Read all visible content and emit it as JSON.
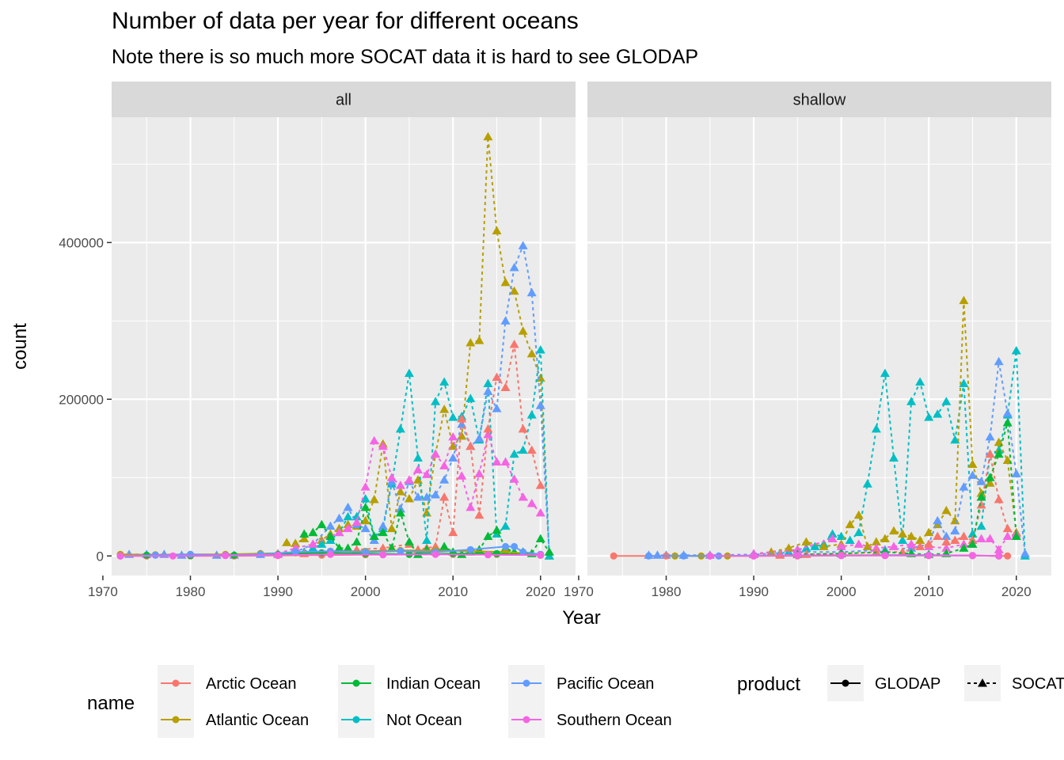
{
  "chart_data": {
    "type": "line",
    "title": "Number of data per year for different oceans",
    "subtitle": "Note there is so much more SOCAT data it is hard to see GLODAP",
    "xlabel": "Year",
    "ylabel": "count",
    "facets": [
      "all",
      "shallow"
    ],
    "xlim": [
      1971,
      2024
    ],
    "ylim": [
      -25000,
      560000
    ],
    "x_ticks": [
      1970,
      1980,
      1990,
      2000,
      2010,
      2020
    ],
    "x_tick_labels": [
      "1970",
      "1980",
      "1990",
      "2000",
      "2010",
      "2020"
    ],
    "y_ticks": [
      0,
      200000,
      400000
    ],
    "y_tick_labels": [
      "0",
      "200000",
      "400000"
    ],
    "grid": true,
    "legend_position": "bottom",
    "colors": {
      "Arctic Ocean": "#F8766D",
      "Atlantic Ocean": "#B79F00",
      "Indian Ocean": "#00BA38",
      "Not Ocean": "#00BFC4",
      "Pacific Ocean": "#619CFF",
      "Southern Ocean": "#F564E3"
    },
    "legend": {
      "name_title": "name",
      "names": [
        "Arctic Ocean",
        "Atlantic Ocean",
        "Indian Ocean",
        "Not Ocean",
        "Pacific Ocean",
        "Southern Ocean"
      ],
      "product_title": "product",
      "products": [
        "GLODAP",
        "SOCAT"
      ]
    },
    "series": [
      {
        "facet": "all",
        "name": "Atlantic Ocean",
        "product": "SOCAT",
        "x": [
          1991,
          1992,
          1993,
          1994,
          1995,
          1996,
          1997,
          1998,
          1999,
          2000,
          2001,
          2002,
          2003,
          2004,
          2005,
          2006,
          2007,
          2008,
          2009,
          2010,
          2011,
          2012,
          2013,
          2014,
          2015,
          2016,
          2017,
          2018,
          2019,
          2020,
          2021
        ],
        "y": [
          17000,
          16000,
          22000,
          30000,
          20000,
          28000,
          35000,
          40000,
          38000,
          45000,
          72000,
          143000,
          35000,
          82000,
          73000,
          97000,
          55000,
          130000,
          187000,
          140000,
          153000,
          272000,
          275000,
          535000,
          415000,
          349000,
          338000,
          287000,
          258000,
          227000,
          0
        ]
      },
      {
        "facet": "all",
        "name": "Not Ocean",
        "product": "SOCAT",
        "x": [
          1993,
          1994,
          1995,
          1996,
          1997,
          1998,
          1999,
          2000,
          2001,
          2002,
          2003,
          2004,
          2005,
          2006,
          2007,
          2008,
          2009,
          2010,
          2011,
          2012,
          2013,
          2014,
          2015,
          2016,
          2017,
          2018,
          2019,
          2020,
          2021
        ],
        "y": [
          5000,
          10000,
          15000,
          20000,
          30000,
          50000,
          50000,
          73000,
          25000,
          35000,
          92000,
          162000,
          233000,
          125000,
          20000,
          197000,
          222000,
          177000,
          178000,
          201000,
          148000,
          220000,
          28000,
          38000,
          130000,
          135000,
          180000,
          263000,
          0
        ]
      },
      {
        "facet": "all",
        "name": "Pacific Ocean",
        "product": "SOCAT",
        "x": [
          1973,
          1975,
          1977,
          1979,
          1983,
          1985,
          1988,
          1990,
          1992,
          1994,
          1996,
          1997,
          1998,
          1999,
          2000,
          2001,
          2002,
          2003,
          2004,
          2005,
          2006,
          2007,
          2008,
          2009,
          2010,
          2011,
          2012,
          2013,
          2014,
          2015,
          2016,
          2017,
          2018,
          2019,
          2020,
          2021
        ],
        "y": [
          2000,
          2000,
          2000,
          1000,
          1000,
          1000,
          2000,
          2000,
          5000,
          15000,
          38000,
          48000,
          62000,
          40000,
          35000,
          20000,
          38000,
          95000,
          60000,
          95000,
          75000,
          75000,
          78000,
          97000,
          125000,
          168000,
          140000,
          150000,
          210000,
          188000,
          300000,
          368000,
          396000,
          336000,
          192000,
          5000
        ]
      },
      {
        "facet": "all",
        "name": "Southern Ocean",
        "product": "SOCAT",
        "x": [
          1990,
          1992,
          1994,
          1996,
          1997,
          1998,
          1999,
          2000,
          2001,
          2002,
          2003,
          2004,
          2005,
          2006,
          2007,
          2008,
          2009,
          2010,
          2011,
          2012,
          2013,
          2014,
          2015,
          2016,
          2017,
          2018,
          2019,
          2020
        ],
        "y": [
          3000,
          10000,
          15000,
          25000,
          30000,
          35000,
          43000,
          88000,
          147000,
          140000,
          100000,
          90000,
          97000,
          110000,
          104000,
          130000,
          115000,
          152000,
          102000,
          62000,
          105000,
          155000,
          120000,
          120000,
          98000,
          75000,
          67000,
          55000
        ]
      },
      {
        "facet": "all",
        "name": "Arctic Ocean",
        "product": "SOCAT",
        "x": [
          1993,
          1996,
          1999,
          2002,
          2005,
          2006,
          2007,
          2008,
          2009,
          2010,
          2011,
          2012,
          2013,
          2014,
          2015,
          2016,
          2017,
          2018,
          2019,
          2020
        ],
        "y": [
          3000,
          5000,
          8000,
          10000,
          15000,
          8000,
          10000,
          12000,
          75000,
          30000,
          175000,
          140000,
          52000,
          162000,
          228000,
          215000,
          270000,
          162000,
          135000,
          90000
        ]
      },
      {
        "facet": "all",
        "name": "Indian Ocean",
        "product": "SOCAT",
        "x": [
          1993,
          1994,
          1995,
          1996,
          1997,
          1998,
          1999,
          2000,
          2001,
          2002,
          2003,
          2004,
          2005,
          2006,
          2007,
          2008,
          2009,
          2010,
          2011,
          2012,
          2013,
          2014,
          2015,
          2016,
          2017,
          2018,
          2019,
          2020,
          2021
        ],
        "y": [
          28000,
          30000,
          40000,
          25000,
          10000,
          10000,
          18000,
          62000,
          25000,
          30000,
          10000,
          55000,
          18000,
          2000,
          8000,
          5000,
          12000,
          5000,
          2000,
          5000,
          8000,
          25000,
          33000,
          10000,
          5000,
          5000,
          3000,
          22000,
          5000
        ]
      },
      {
        "facet": "all",
        "name": "Arctic Ocean",
        "product": "GLODAP",
        "x": [
          1972,
          1975,
          1980,
          1985,
          1990,
          1995,
          2000,
          2005,
          2010,
          2015,
          2020
        ],
        "y": [
          0,
          0,
          0,
          0,
          500,
          1000,
          1500,
          2000,
          2000,
          2000,
          1000
        ]
      },
      {
        "facet": "all",
        "name": "Atlantic Ocean",
        "product": "GLODAP",
        "x": [
          1972,
          1976,
          1980,
          1984,
          1988,
          1992,
          1996,
          2000,
          2004,
          2008,
          2012,
          2016,
          2020
        ],
        "y": [
          2000,
          1500,
          2000,
          2000,
          3000,
          4000,
          6000,
          6000,
          7000,
          7000,
          6000,
          5000,
          2000
        ]
      },
      {
        "facet": "all",
        "name": "Indian Ocean",
        "product": "GLODAP",
        "x": [
          1975,
          1980,
          1985,
          1990,
          1995,
          2000,
          2005,
          2010,
          2015,
          2020
        ],
        "y": [
          1000,
          500,
          1000,
          2000,
          4000,
          3000,
          2000,
          3000,
          3000,
          1000
        ]
      },
      {
        "facet": "all",
        "name": "Pacific Ocean",
        "product": "GLODAP",
        "x": [
          1972,
          1976,
          1980,
          1984,
          1988,
          1992,
          1996,
          2000,
          2004,
          2008,
          2012,
          2016,
          2017,
          2018,
          2020
        ],
        "y": [
          0,
          1000,
          2000,
          1000,
          2000,
          5000,
          6000,
          5000,
          6000,
          5000,
          8000,
          12000,
          12000,
          5000,
          2000
        ]
      },
      {
        "facet": "all",
        "name": "Southern Ocean",
        "product": "GLODAP",
        "x": [
          1972,
          1978,
          1984,
          1990,
          1996,
          2002,
          2008,
          2014,
          2020
        ],
        "y": [
          0,
          0,
          500,
          1000,
          2000,
          1500,
          2000,
          1500,
          1000
        ]
      },
      {
        "facet": "shallow",
        "name": "Not Ocean",
        "product": "SOCAT",
        "x": [
          1993,
          1994,
          1995,
          1996,
          1997,
          1998,
          1999,
          2000,
          2001,
          2002,
          2003,
          2004,
          2005,
          2006,
          2007,
          2008,
          2009,
          2010,
          2011,
          2012,
          2013,
          2014,
          2015,
          2016,
          2017,
          2018,
          2019,
          2020,
          2021
        ],
        "y": [
          3000,
          5000,
          8000,
          10000,
          12000,
          15000,
          28000,
          25000,
          20000,
          30000,
          92000,
          162000,
          233000,
          125000,
          20000,
          197000,
          222000,
          177000,
          181000,
          197000,
          148000,
          220000,
          28000,
          38000,
          130000,
          135000,
          180000,
          262000,
          0
        ]
      },
      {
        "facet": "shallow",
        "name": "Atlantic Ocean",
        "product": "SOCAT",
        "x": [
          1990,
          1992,
          1994,
          1996,
          1998,
          2000,
          2001,
          2002,
          2003,
          2004,
          2005,
          2006,
          2007,
          2008,
          2009,
          2010,
          2011,
          2012,
          2013,
          2014,
          2015,
          2016,
          2017,
          2018,
          2019,
          2020
        ],
        "y": [
          2000,
          5000,
          10000,
          18000,
          12000,
          15000,
          40000,
          52000,
          12000,
          18000,
          22000,
          32000,
          28000,
          25000,
          20000,
          30000,
          40000,
          58000,
          45000,
          326000,
          117000,
          80000,
          93000,
          145000,
          122000,
          30000
        ]
      },
      {
        "facet": "shallow",
        "name": "Pacific Ocean",
        "product": "SOCAT",
        "x": [
          1978,
          1979,
          1980,
          1982,
          1985,
          1990,
          1995,
          2000,
          2005,
          2008,
          2010,
          2011,
          2012,
          2013,
          2014,
          2015,
          2016,
          2017,
          2018,
          2019,
          2020,
          2021
        ],
        "y": [
          1000,
          1000,
          1000,
          1000,
          1000,
          2000,
          5000,
          5000,
          8000,
          10000,
          15000,
          45000,
          25000,
          32000,
          88000,
          103000,
          95000,
          152000,
          248000,
          182000,
          105000,
          3000
        ]
      },
      {
        "facet": "shallow",
        "name": "Southern Ocean",
        "product": "SOCAT",
        "x": [
          1990,
          1995,
          1999,
          2000,
          2002,
          2004,
          2006,
          2008,
          2010,
          2012,
          2014,
          2015,
          2016,
          2017,
          2018,
          2019,
          2020
        ],
        "y": [
          3000,
          8000,
          22000,
          12000,
          15000,
          10000,
          12000,
          15000,
          12000,
          10000,
          15000,
          15000,
          22000,
          22000,
          8000,
          25000,
          28000
        ]
      },
      {
        "facet": "shallow",
        "name": "Arctic Ocean",
        "product": "SOCAT",
        "x": [
          1993,
          1996,
          2000,
          2004,
          2007,
          2009,
          2010,
          2011,
          2012,
          2013,
          2014,
          2015,
          2016,
          2017,
          2018,
          2019,
          2020
        ],
        "y": [
          1000,
          2000,
          3000,
          5000,
          5000,
          12000,
          15000,
          25000,
          18000,
          20000,
          25000,
          20000,
          65000,
          130000,
          72000,
          35000,
          25000
        ]
      },
      {
        "facet": "shallow",
        "name": "Indian Ocean",
        "product": "SOCAT",
        "x": [
          1995,
          2000,
          2005,
          2008,
          2010,
          2012,
          2014,
          2015,
          2016,
          2017,
          2018,
          2019,
          2020
        ],
        "y": [
          2000,
          3000,
          5000,
          3000,
          2000,
          3000,
          10000,
          15000,
          75000,
          100000,
          130000,
          170000,
          25000
        ]
      },
      {
        "facet": "shallow",
        "name": "Arctic Ocean",
        "product": "GLODAP",
        "x": [
          1974,
          1980,
          1985,
          1990,
          1995,
          2000,
          2005,
          2010,
          2015,
          2019
        ],
        "y": [
          0,
          0,
          0,
          0,
          0,
          500,
          500,
          500,
          500,
          0
        ]
      },
      {
        "facet": "shallow",
        "name": "Atlantic Ocean",
        "product": "GLODAP",
        "x": [
          1981,
          1984,
          1987,
          1990,
          1995,
          2000,
          2005,
          2010,
          2015,
          2018
        ],
        "y": [
          0,
          0,
          0,
          500,
          500,
          1000,
          1000,
          1000,
          500,
          0
        ]
      },
      {
        "facet": "shallow",
        "name": "Pacific Ocean",
        "product": "GLODAP",
        "x": [
          1978,
          1982,
          1986,
          1990,
          1995,
          2000,
          2005,
          2010,
          2015,
          2018
        ],
        "y": [
          0,
          0,
          0,
          500,
          500,
          500,
          1000,
          1000,
          500,
          0
        ]
      },
      {
        "facet": "shallow",
        "name": "Southern Ocean",
        "product": "GLODAP",
        "x": [
          1985,
          1990,
          1995,
          2000,
          2005,
          2010,
          2015,
          2018
        ],
        "y": [
          0,
          0,
          500,
          500,
          500,
          500,
          500,
          0
        ]
      }
    ]
  }
}
